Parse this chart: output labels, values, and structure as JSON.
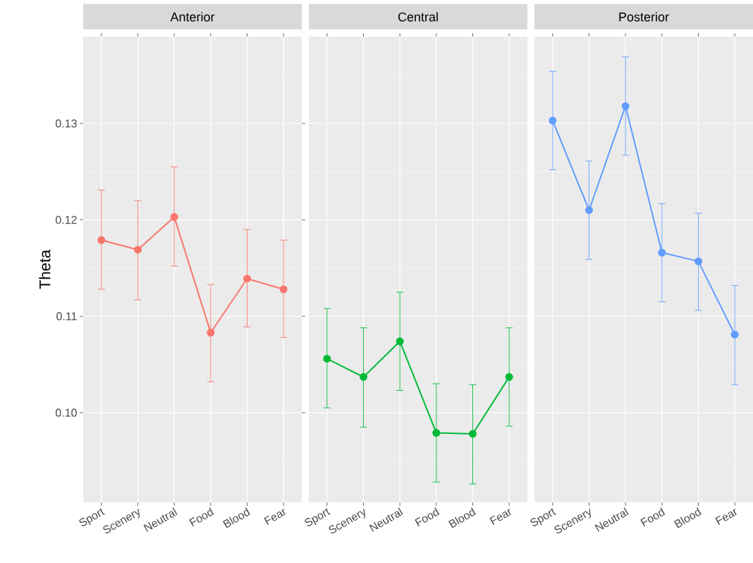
{
  "chart_data": [
    {
      "type": "line",
      "title": "Anterior",
      "ylabel": "Theta",
      "categories": [
        "Sport",
        "Scenery",
        "Neutral",
        "Food",
        "Blood",
        "Fear"
      ],
      "ylim": [
        0.0907,
        0.139
      ],
      "yticks": [
        {
          "value": 0.1,
          "label": "0.10"
        },
        {
          "value": 0.11,
          "label": "0.11"
        },
        {
          "value": 0.12,
          "label": "0.12"
        },
        {
          "value": 0.13,
          "label": "0.13"
        }
      ],
      "grid": true,
      "marker": "circle",
      "line_style": "solid",
      "series": [
        {
          "color": "#F8766D",
          "values": [
            0.1179,
            0.1169,
            0.1203,
            0.1083,
            0.1139,
            0.1128
          ],
          "errors": [
            [
              0.1128,
              0.1231
            ],
            [
              0.1117,
              0.122
            ],
            [
              0.1152,
              0.1255
            ],
            [
              0.1032,
              0.1133
            ],
            [
              0.1089,
              0.119
            ],
            [
              0.1078,
              0.1179
            ]
          ]
        }
      ]
    },
    {
      "type": "line",
      "title": "Central",
      "categories": [
        "Sport",
        "Scenery",
        "Neutral",
        "Food",
        "Blood",
        "Fear"
      ],
      "ylim": [
        0.0907,
        0.139
      ],
      "tick_labels": "x",
      "grid": true,
      "marker": "circle",
      "line_style": "solid",
      "series": [
        {
          "color": "#00BA38",
          "values": [
            0.1056,
            0.1037,
            0.1074,
            0.0979,
            0.0978,
            0.1037
          ],
          "errors": [
            [
              0.1005,
              0.1108
            ],
            [
              0.0985,
              0.1088
            ],
            [
              0.1023,
              0.1125
            ],
            [
              0.0928,
              0.103
            ],
            [
              0.0926,
              0.1029
            ],
            [
              0.0986,
              0.1088
            ]
          ]
        }
      ]
    },
    {
      "type": "line",
      "title": "Posterior",
      "categories": [
        "Sport",
        "Scenery",
        "Neutral",
        "Food",
        "Blood",
        "Fear"
      ],
      "ylim": [
        0.0907,
        0.139
      ],
      "tick_labels": "x",
      "grid": true,
      "marker": "circle",
      "line_style": "solid",
      "series": [
        {
          "color": "#619CFF",
          "values": [
            0.1303,
            0.121,
            0.1318,
            0.1166,
            0.1157,
            0.1081
          ],
          "errors": [
            [
              0.1252,
              0.1354
            ],
            [
              0.1159,
              0.1261
            ],
            [
              0.1267,
              0.1369
            ],
            [
              0.1115,
              0.1217
            ],
            [
              0.1106,
              0.1207
            ],
            [
              0.1029,
              0.1132
            ]
          ]
        }
      ]
    }
  ]
}
